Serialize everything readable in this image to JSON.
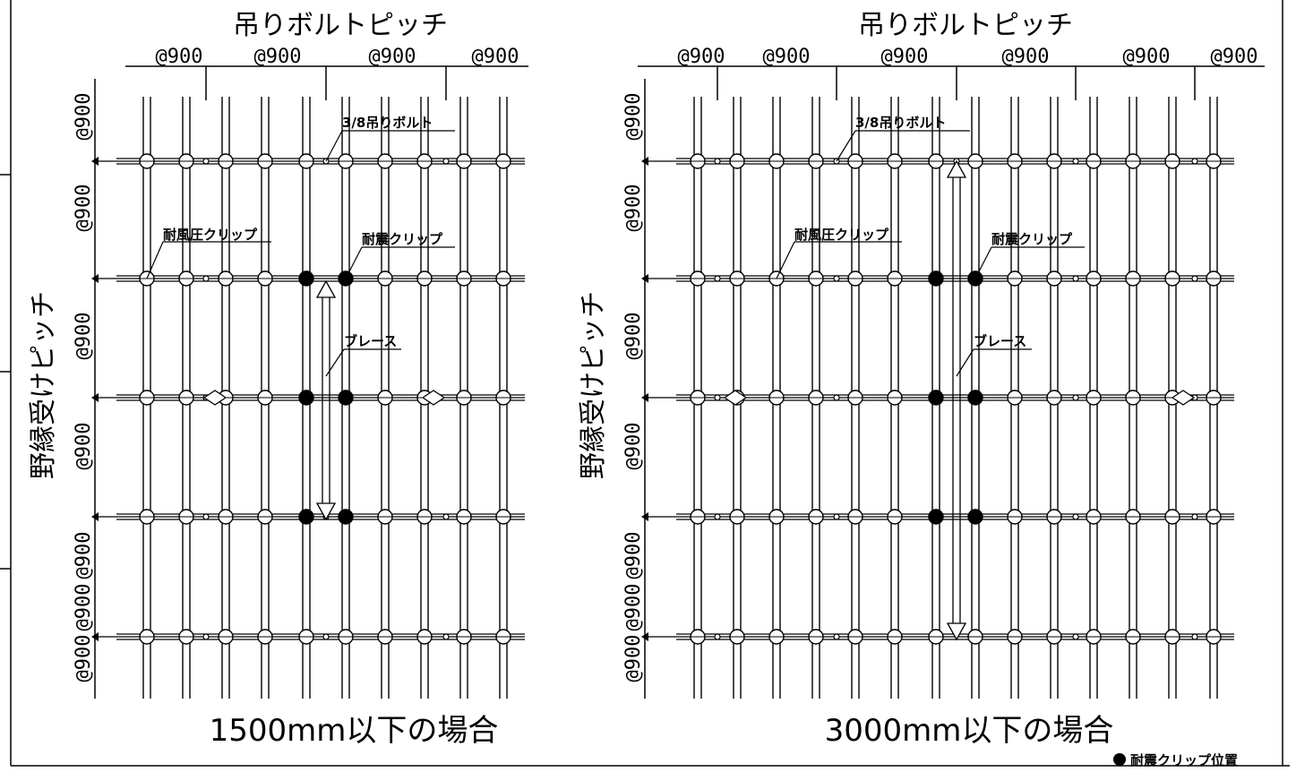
{
  "panels": [
    {
      "id": "left",
      "bolt_pitch_label": "吊りボルトピッチ",
      "bolt_dims": [
        "@900",
        "@900",
        "@900",
        "@900"
      ],
      "nobuchi_pitch_label": "野縁受けピッチ",
      "nobuchi_dims": [
        "@900",
        "@900",
        "@900",
        "@900",
        "@900",
        "@900",
        "@900"
      ],
      "callouts": {
        "bolt": "3/8吊りボルト",
        "wind_clip": "耐風圧クリップ",
        "quake_clip": "耐震クリップ",
        "brace": "ブレース"
      },
      "caption": "1500mm以下の場合"
    },
    {
      "id": "right",
      "bolt_pitch_label": "吊りボルトピッチ",
      "bolt_dims": [
        "@900",
        "@900",
        "@900",
        "@900",
        "@900",
        "@900"
      ],
      "nobuchi_pitch_label": "野縁受けピッチ",
      "nobuchi_dims": [
        "@900",
        "@900",
        "@900",
        "@900",
        "@900",
        "@900",
        "@900"
      ],
      "callouts": {
        "bolt": "3/8吊りボルト",
        "wind_clip": "耐風圧クリップ",
        "quake_clip": "耐震クリップ",
        "brace": "ブレース"
      },
      "caption": "3000mm以下の場合"
    }
  ],
  "legend": {
    "label": "耐震クリップ位置",
    "marker": "filled-circle"
  },
  "colors": {
    "line": "#000000",
    "background": "#ffffff"
  }
}
